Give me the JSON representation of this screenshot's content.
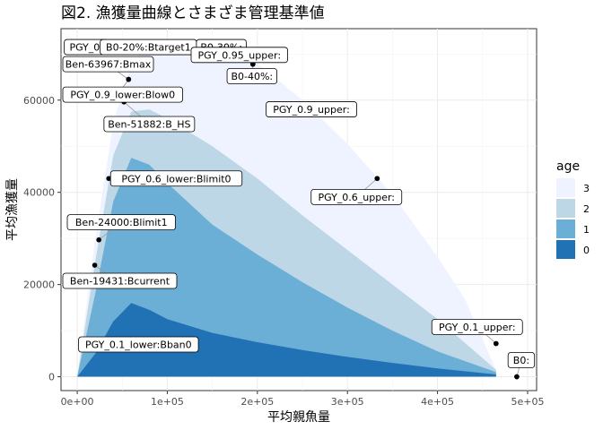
{
  "chart_data": {
    "type": "area",
    "title": "図2. 漁獲量曲線とさまざま管理基準値",
    "xlabel": "平均親魚量",
    "ylabel": "平均漁獲量",
    "xlim": [
      -18000,
      510000
    ],
    "ylim": [
      -3000,
      75500
    ],
    "x_ticks": [
      0,
      100000,
      200000,
      300000,
      400000,
      500000
    ],
    "x_tick_labels": [
      "0e+00",
      "1e+05",
      "2e+05",
      "3e+05",
      "4e+05",
      "5e+05"
    ],
    "y_ticks": [
      0,
      20000,
      40000,
      60000
    ],
    "y_tick_labels": [
      "0",
      "20000",
      "40000",
      "60000"
    ],
    "grid": true,
    "legend_title": "age",
    "legend_position": "right",
    "series": [
      {
        "name": "3",
        "color": "#eff3ff",
        "points": [
          [
            0,
            0
          ],
          [
            20000,
            30000
          ],
          [
            40000,
            55000
          ],
          [
            60000,
            68000
          ],
          [
            80000,
            72500
          ],
          [
            100000,
            73000
          ],
          [
            150000,
            72000
          ],
          [
            200000,
            68000
          ],
          [
            250000,
            60000
          ],
          [
            300000,
            50500
          ],
          [
            350000,
            39500
          ],
          [
            400000,
            26000
          ],
          [
            430000,
            17000
          ],
          [
            465000,
            1500
          ]
        ]
      },
      {
        "name": "2",
        "color": "#bdd7e7",
        "points": [
          [
            0,
            0
          ],
          [
            20000,
            25000
          ],
          [
            40000,
            48000
          ],
          [
            60000,
            57500
          ],
          [
            80000,
            58000
          ],
          [
            100000,
            56000
          ],
          [
            150000,
            50000
          ],
          [
            200000,
            43000
          ],
          [
            250000,
            35000
          ],
          [
            300000,
            27500
          ],
          [
            350000,
            20000
          ],
          [
            400000,
            12500
          ],
          [
            465000,
            1500
          ]
        ]
      },
      {
        "name": "1",
        "color": "#6baed6",
        "points": [
          [
            0,
            0
          ],
          [
            20000,
            18000
          ],
          [
            40000,
            38000
          ],
          [
            60000,
            47500
          ],
          [
            80000,
            46000
          ],
          [
            100000,
            42000
          ],
          [
            150000,
            33000
          ],
          [
            200000,
            26500
          ],
          [
            250000,
            20500
          ],
          [
            300000,
            15000
          ],
          [
            350000,
            10000
          ],
          [
            400000,
            5500
          ],
          [
            465000,
            1000
          ]
        ]
      },
      {
        "name": "0",
        "color": "#2171b5",
        "points": [
          [
            0,
            0
          ],
          [
            20000,
            5000
          ],
          [
            40000,
            12000
          ],
          [
            60000,
            16000
          ],
          [
            80000,
            14500
          ],
          [
            100000,
            12500
          ],
          [
            150000,
            9500
          ],
          [
            200000,
            7500
          ],
          [
            250000,
            5800
          ],
          [
            300000,
            4300
          ],
          [
            350000,
            3000
          ],
          [
            400000,
            1800
          ],
          [
            465000,
            500
          ]
        ]
      }
    ],
    "annotations": [
      {
        "label": "PGY_0.1_lower:Bban0",
        "x": 5000,
        "y": 7200,
        "lx": 68000,
        "ly": 7000
      },
      {
        "label": "Ben-19431:Bcurrent",
        "x": 19431,
        "y": 24200,
        "lx": 44000,
        "ly": 20800
      },
      {
        "label": "Ben-24000:Blimit1",
        "x": 24000,
        "y": 29700,
        "lx": 49000,
        "ly": 33500
      },
      {
        "label": "PGY_0.6_lower:Blimit0",
        "x": 35000,
        "y": 43000,
        "lx": 110000,
        "ly": 43000
      },
      {
        "label": "Ben-51882:B_HS",
        "x": 51882,
        "y": 59600,
        "lx": 80000,
        "ly": 54800
      },
      {
        "label": "PGY_0.9_lower:Blow0",
        "x": 57000,
        "y": 64500,
        "lx": 45000,
        "ly": 61200
      },
      {
        "label": "Ben-63967:Bmax",
        "x": 57000,
        "y": 64500,
        "lx": 33000,
        "ly": 67800
      },
      {
        "label": "PGY_0.",
        "x": 70000,
        "y": 71000,
        "lx": 10000,
        "ly": 71500
      },
      {
        "label": "B0-20%:Btarget1",
        "x": 75000,
        "y": 71500,
        "lx": 79000,
        "ly": 71500
      },
      {
        "label": "B0-30%:",
        "x": 140000,
        "y": 71000,
        "lx": 160000,
        "ly": 71500
      },
      {
        "label": "PGY_0.95_upper:",
        "x": 195000,
        "y": 67800,
        "lx": 180000,
        "ly": 69800
      },
      {
        "label": "B0-40%:",
        "x": 195000,
        "y": 67800,
        "lx": 194000,
        "ly": 65200
      },
      {
        "label": "PGY_0.9_upper:",
        "x": 250000,
        "y": 58000,
        "lx": 260000,
        "ly": 58000
      },
      {
        "label": "PGY_0.6_upper:",
        "x": 333000,
        "y": 43000,
        "lx": 310000,
        "ly": 39000
      },
      {
        "label": "PGY_0.1_upper:",
        "x": 465000,
        "y": 7200,
        "lx": 444000,
        "ly": 10800
      },
      {
        "label": "B0:",
        "x": 488000,
        "y": 0,
        "lx": 493000,
        "ly": 3600
      }
    ],
    "points_only": [
      [
        465000,
        7200
      ],
      [
        488000,
        0
      ],
      [
        333000,
        43000
      ],
      [
        195000,
        67800
      ]
    ]
  }
}
